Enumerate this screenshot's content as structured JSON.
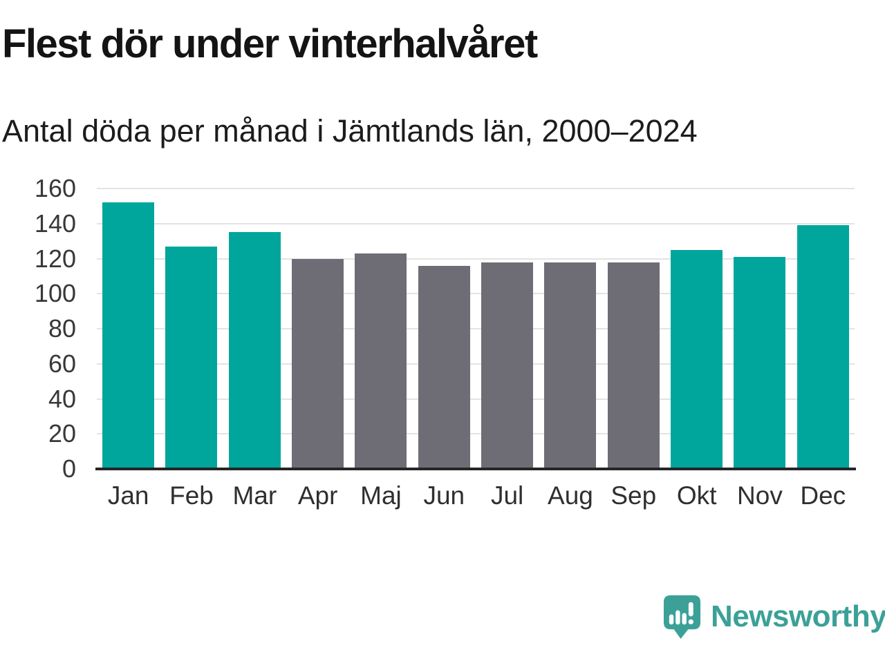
{
  "header": {
    "title": "Flest dör under vinterhalvåret",
    "subtitle": "Antal döda per månad i Jämtlands län, 2000–2024"
  },
  "chart_data": {
    "type": "bar",
    "title": "Flest dör under vinterhalvåret",
    "subtitle": "Antal döda per månad i Jämtlands län, 2000–2024",
    "categories": [
      "Jan",
      "Feb",
      "Mar",
      "Apr",
      "Maj",
      "Jun",
      "Jul",
      "Aug",
      "Sep",
      "Okt",
      "Nov",
      "Dec"
    ],
    "values": [
      152,
      127,
      135,
      120,
      123,
      116,
      118,
      118,
      118,
      125,
      121,
      139
    ],
    "bar_colors": [
      "#00a69c",
      "#00a69c",
      "#00a69c",
      "#6e6d75",
      "#6e6d75",
      "#6e6d75",
      "#6e6d75",
      "#6e6d75",
      "#6e6d75",
      "#00a69c",
      "#00a69c",
      "#00a69c"
    ],
    "highlight_color": "#00a69c",
    "neutral_color": "#6e6d75",
    "xlabel": "",
    "ylabel": "",
    "ylim": [
      0,
      160
    ],
    "yticks": [
      0,
      20,
      40,
      60,
      80,
      100,
      120,
      140,
      160
    ],
    "grid": "horizontal",
    "gridline_color": "#e3e3e3",
    "axis_color": "#262626",
    "legend": "none"
  },
  "footer": {
    "brand": "Newsworthy",
    "brand_color": "#3ba197"
  }
}
